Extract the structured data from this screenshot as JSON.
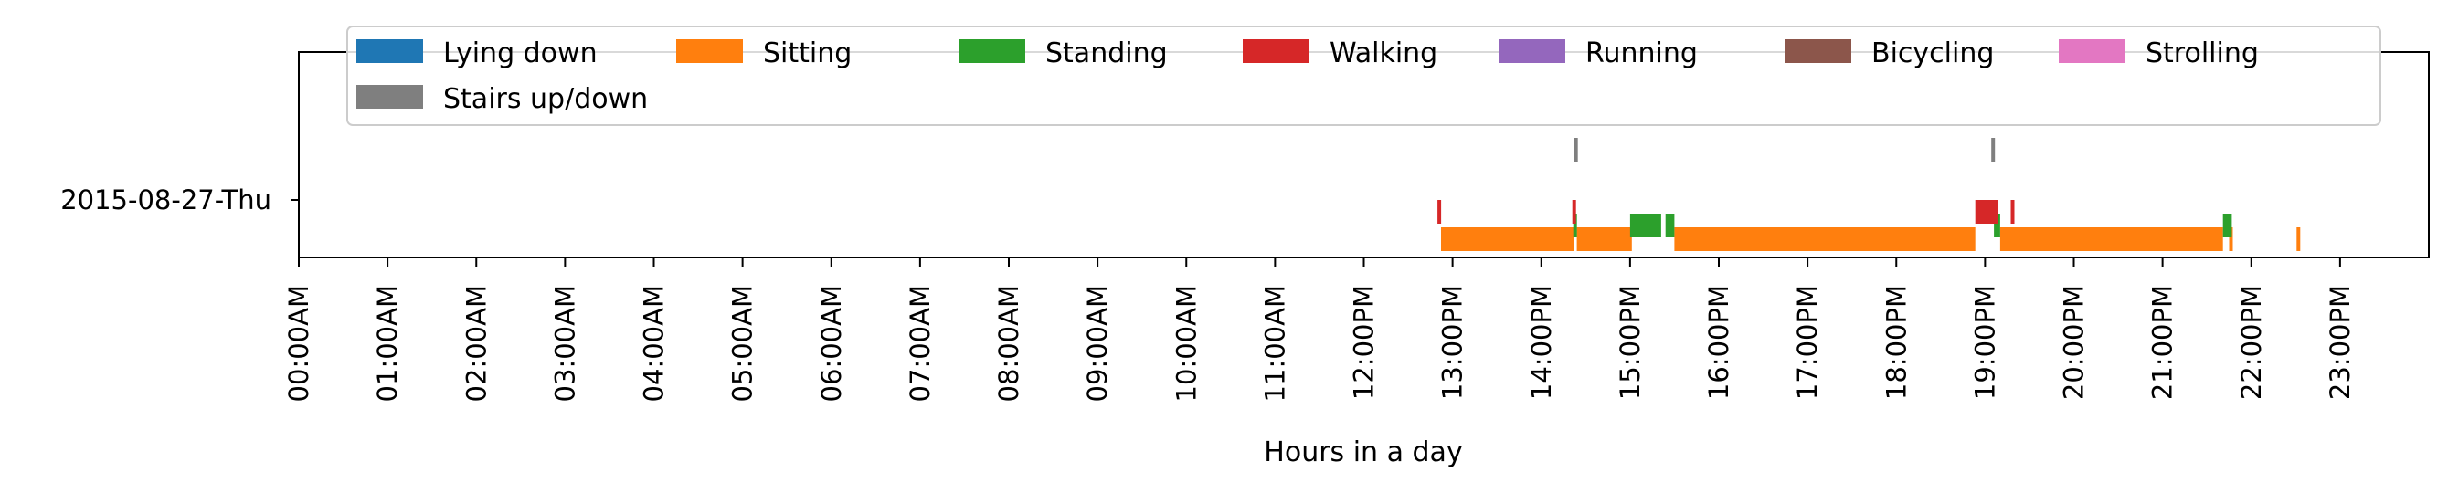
{
  "chart_data": {
    "type": "bar",
    "orientation": "horizontal-timeline",
    "title": "",
    "xlabel": "Hours in a day",
    "ylabel": "",
    "xlim": [
      0,
      24
    ],
    "y_categories": [
      "2015-08-27-Thu"
    ],
    "x_tick_labels": [
      "00:00AM",
      "01:00AM",
      "02:00AM",
      "03:00AM",
      "04:00AM",
      "05:00AM",
      "06:00AM",
      "07:00AM",
      "08:00AM",
      "09:00AM",
      "10:00AM",
      "11:00AM",
      "12:00PM",
      "13:00PM",
      "14:00PM",
      "15:00PM",
      "16:00PM",
      "17:00PM",
      "18:00PM",
      "19:00PM",
      "20:00PM",
      "21:00PM",
      "22:00PM",
      "23:00PM"
    ],
    "legend_position": "top",
    "grid": false,
    "series": [
      {
        "name": "Lying down",
        "color": "#1f77b4",
        "intervals": []
      },
      {
        "name": "Sitting",
        "color": "#ff7f0e",
        "intervals": [
          [
            12.87,
            14.37
          ],
          [
            14.4,
            15.02
          ],
          [
            15.5,
            18.89
          ],
          [
            19.17,
            21.68
          ],
          [
            21.75,
            21.79
          ],
          [
            22.51,
            22.55
          ]
        ]
      },
      {
        "name": "Standing",
        "color": "#2ca02c",
        "intervals": [
          [
            14.36,
            14.4
          ],
          [
            15.0,
            15.35
          ],
          [
            15.4,
            15.5
          ],
          [
            19.1,
            19.17
          ],
          [
            21.68,
            21.78
          ]
        ]
      },
      {
        "name": "Walking",
        "color": "#d62728",
        "intervals": [
          [
            12.83,
            12.87
          ],
          [
            14.35,
            14.39
          ],
          [
            18.89,
            19.14
          ],
          [
            19.29,
            19.33
          ]
        ]
      },
      {
        "name": "Running",
        "color": "#9467bd",
        "intervals": []
      },
      {
        "name": "Bicycling",
        "color": "#8c564b",
        "intervals": []
      },
      {
        "name": "Strolling",
        "color": "#e377c2",
        "intervals": []
      },
      {
        "name": "Stairs up/down",
        "color": "#7f7f7f",
        "intervals": [
          [
            14.37,
            14.4
          ],
          [
            19.07,
            19.1
          ]
        ]
      }
    ]
  }
}
